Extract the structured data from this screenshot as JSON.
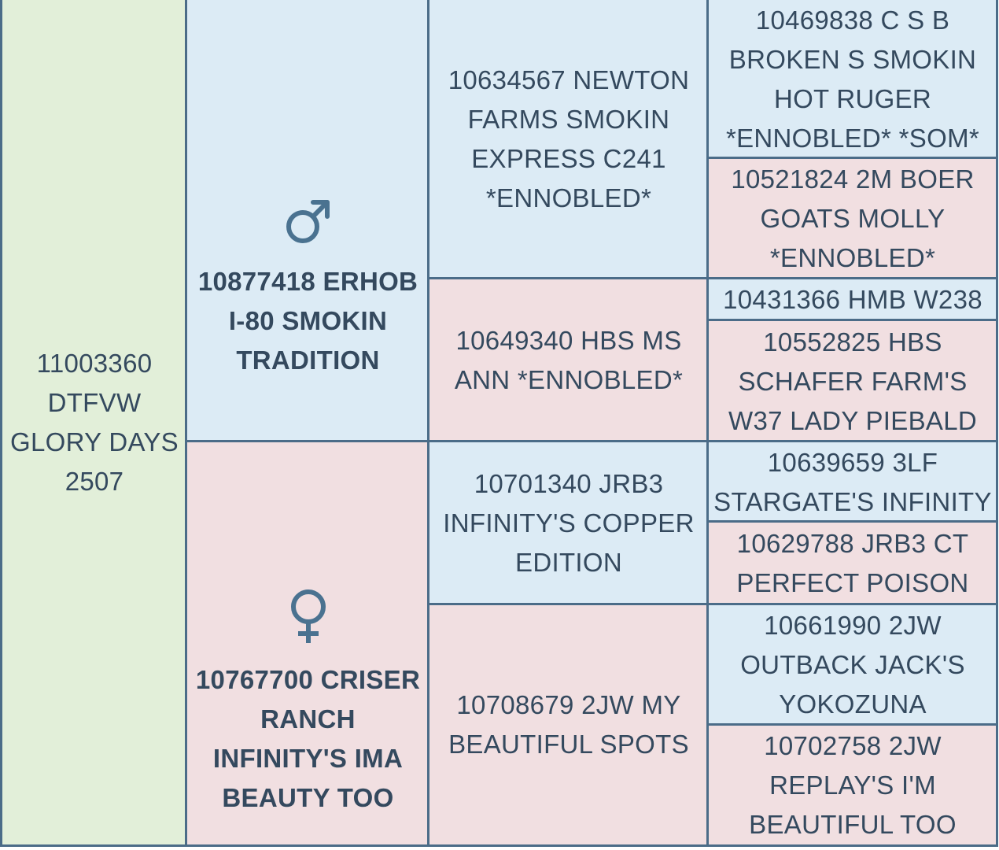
{
  "subject": {
    "name": "11003360 DTFVW GLORY DAYS 2507"
  },
  "sire": {
    "symbol": "♂",
    "name": "10877418 ERHOB I-80 SMOKIN TRADITION"
  },
  "dam": {
    "symbol": "♀",
    "name": "10767700 CRISER RANCH INFINITY'S IMA BEAUTY TOO"
  },
  "grandparents": {
    "sire_sire": "10634567 NEWTON FARMS SMOKIN EXPRESS C241 *ENNOBLED*",
    "sire_dam": "10649340 HBS MS ANN *ENNOBLED*",
    "dam_sire": "10701340 JRB3 INFINITY'S COPPER EDITION",
    "dam_dam": "10708679 2JW MY BEAUTIFUL SPOTS"
  },
  "great_grandparents": {
    "ss_sire": "10469838 C S B BROKEN S SMOKIN HOT RUGER *ENNOBLED* *SOM*",
    "ss_dam": "10521824 2M BOER GOATS MOLLY *ENNOBLED*",
    "sd_sire": "10431366 HMB W238",
    "sd_dam": "10552825 HBS SCHAFER FARM'S W37 LADY PIEBALD",
    "ds_sire": "10639659 3LF STARGATE'S INFINITY",
    "ds_dam": "10629788 JRB3 CT PERFECT POISON",
    "dd_sire": "10661990 2JW OUTBACK JACK'S YOKOZUNA",
    "dd_dam": "10702758 2JW REPLAY'S I'M BEAUTIFUL TOO"
  },
  "colors": {
    "subject_bg": "#e2efd9",
    "male_bg": "#dcebf5",
    "female_bg": "#f1dfe1",
    "border": "#4b6c88",
    "text": "#34495e",
    "symbol": "#4a7290"
  }
}
